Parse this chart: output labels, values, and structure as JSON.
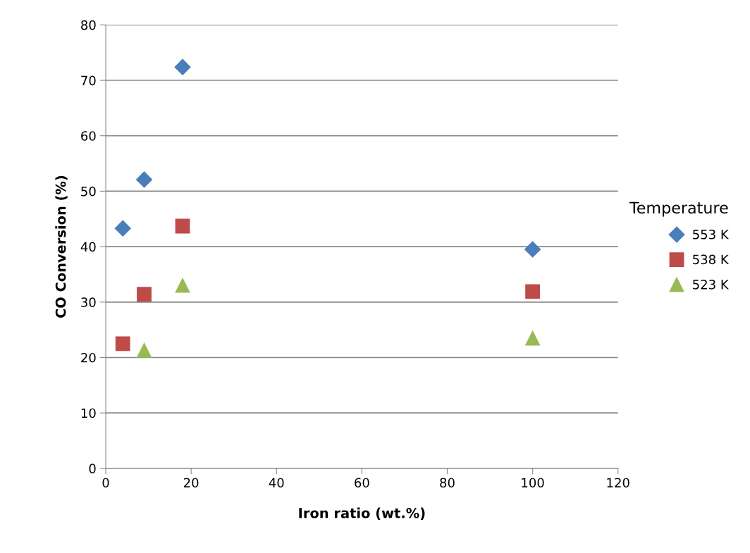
{
  "chart_data": {
    "type": "scatter",
    "xlabel": "Iron ratio (wt.%)",
    "ylabel": "CO Conversion (%)",
    "legend_title": "Temperature",
    "legend": "right",
    "grid": "y",
    "xlim": [
      0,
      120
    ],
    "xticks": [
      0,
      20,
      40,
      60,
      80,
      100,
      120
    ],
    "ylim": [
      0,
      80
    ],
    "yticks": [
      0,
      10,
      20,
      30,
      40,
      50,
      60,
      70,
      80
    ],
    "series": [
      {
        "name": "553 K",
        "color": "#4a7ebb",
        "marker": "diamond",
        "x": [
          4,
          9,
          18,
          100
        ],
        "values": [
          43.3,
          52.1,
          72.4,
          39.5
        ]
      },
      {
        "name": "538 K",
        "color": "#be4b48",
        "marker": "square",
        "x": [
          4,
          9,
          18,
          100
        ],
        "values": [
          22.5,
          31.4,
          43.7,
          31.9
        ]
      },
      {
        "name": "523 K",
        "color": "#98b954",
        "marker": "triangle",
        "x": [
          9,
          18,
          100
        ],
        "values": [
          21.3,
          33.0,
          23.5
        ]
      }
    ]
  }
}
